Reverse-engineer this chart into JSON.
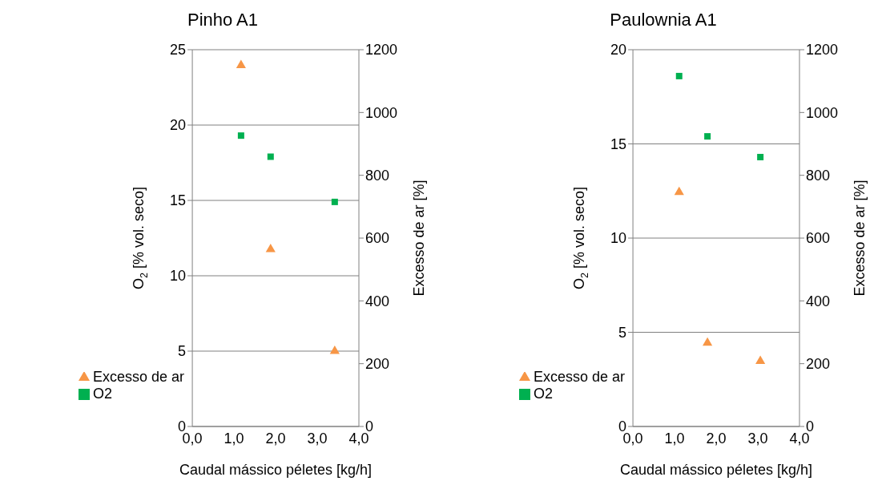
{
  "chart_data": [
    {
      "type": "scatter",
      "title": "Pinho A1",
      "xlabel": "Caudal mássico péletes [kg/h]",
      "ylabel": "O$_{2}$ [% vol. seco]",
      "y2label": "Excesso de ar [%]",
      "xlim": [
        0,
        4
      ],
      "xticks": [
        {
          "value": 0,
          "label": "0,0"
        },
        {
          "value": 1,
          "label": "1,0"
        },
        {
          "value": 2,
          "label": "2,0"
        },
        {
          "value": 3,
          "label": "3,0"
        },
        {
          "value": 4,
          "label": "4,0"
        }
      ],
      "ylim": [
        0,
        25
      ],
      "yticks": [
        0,
        5,
        10,
        15,
        20,
        25
      ],
      "y2lim": [
        0,
        1200
      ],
      "y2ticks": [
        0,
        200,
        400,
        600,
        800,
        1000,
        1200
      ],
      "grid": "y",
      "legend": "bottom left",
      "series": [
        {
          "name": "O2",
          "color": "#00b050",
          "marker": "square",
          "x": [
            1.17,
            1.88,
            3.42
          ],
          "values": [
            19.3,
            17.9,
            14.9
          ]
        },
        {
          "name": "Excesso de ar",
          "color": "#f79646",
          "marker": "triangle",
          "axis": "y2",
          "x": [
            1.17,
            1.88,
            3.42
          ],
          "values": [
            1150,
            564,
            240
          ]
        }
      ]
    },
    {
      "type": "scatter",
      "title": "Paulownia A1",
      "xlabel": "Caudal mássico péletes [kg/h]",
      "ylabel": "O$_{2}$ [% vol. seco]",
      "y2label": "Excesso de ar [%]",
      "xlim": [
        0,
        4
      ],
      "xticks": [
        {
          "value": 0,
          "label": "0,0"
        },
        {
          "value": 1,
          "label": "1,0"
        },
        {
          "value": 2,
          "label": "2,0"
        },
        {
          "value": 3,
          "label": "3,0"
        },
        {
          "value": 4,
          "label": "4,0"
        }
      ],
      "ylim": [
        0,
        20
      ],
      "yticks": [
        0,
        5,
        10,
        15,
        20
      ],
      "y2lim": [
        0,
        1200
      ],
      "y2ticks": [
        0,
        200,
        400,
        600,
        800,
        1000,
        1200
      ],
      "grid": "y",
      "legend": "bottom left",
      "series": [
        {
          "name": "O2",
          "color": "#00b050",
          "marker": "square",
          "x": [
            1.11,
            1.79,
            3.06
          ],
          "values": [
            18.6,
            15.4,
            14.3
          ]
        },
        {
          "name": "Excesso de ar",
          "color": "#f79646",
          "marker": "triangle",
          "axis": "y2",
          "x": [
            1.11,
            1.79,
            3.06
          ],
          "values": [
            746,
            266,
            208
          ]
        }
      ]
    }
  ]
}
